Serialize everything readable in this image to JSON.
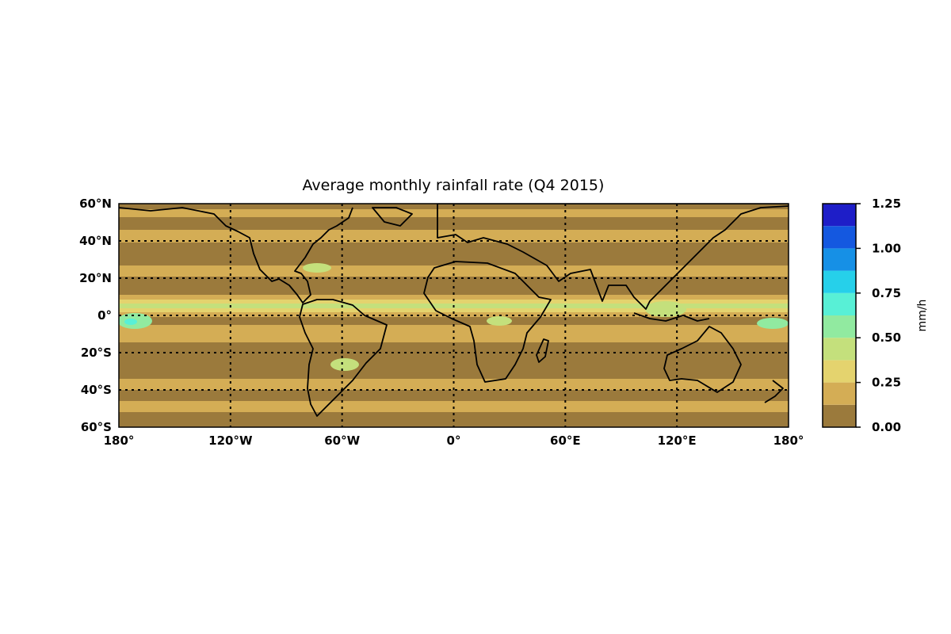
{
  "title": "Average monthly rainfall rate (Q4 2015)",
  "map": {
    "projection": "equirectangular",
    "lon_range": [
      -180,
      180
    ],
    "lat_range": [
      -60,
      60
    ],
    "lat_ticks": [
      {
        "value": 60,
        "label": "60°N"
      },
      {
        "value": 40,
        "label": "40°N"
      },
      {
        "value": 20,
        "label": "20°N"
      },
      {
        "value": 0,
        "label": "0°"
      },
      {
        "value": -20,
        "label": "20°S"
      },
      {
        "value": -40,
        "label": "40°S"
      },
      {
        "value": -60,
        "label": "60°S"
      }
    ],
    "lon_ticks": [
      {
        "value": -180,
        "label": "180°"
      },
      {
        "value": -120,
        "label": "120°W"
      },
      {
        "value": -60,
        "label": "60°W"
      },
      {
        "value": 0,
        "label": "0°"
      },
      {
        "value": 60,
        "label": "60°E"
      },
      {
        "value": 120,
        "label": "120°E"
      },
      {
        "value": 180,
        "label": "180°"
      }
    ],
    "gridlines": "dotted",
    "background_color": "#9b7a3c"
  },
  "colorbar": {
    "label": "mm/h",
    "range": [
      0,
      1.25
    ],
    "bounds": [
      0,
      0.125,
      0.25,
      0.375,
      0.5,
      0.625,
      0.75,
      0.875,
      1.0,
      1.125,
      1.25
    ],
    "colors": [
      "#9b7a3c",
      "#d4ad55",
      "#e4d36e",
      "#c4e07c",
      "#91eaa0",
      "#58f0d6",
      "#26d0ea",
      "#1690e6",
      "#1458e0",
      "#1e1ec8"
    ],
    "tick_labels": [
      {
        "value": 0.0,
        "label": "0.00"
      },
      {
        "value": 0.25,
        "label": "0.25"
      },
      {
        "value": 0.5,
        "label": "0.50"
      },
      {
        "value": 0.75,
        "label": "0.75"
      },
      {
        "value": 1.0,
        "label": "1.00"
      },
      {
        "value": 1.25,
        "label": "1.25"
      }
    ]
  }
}
